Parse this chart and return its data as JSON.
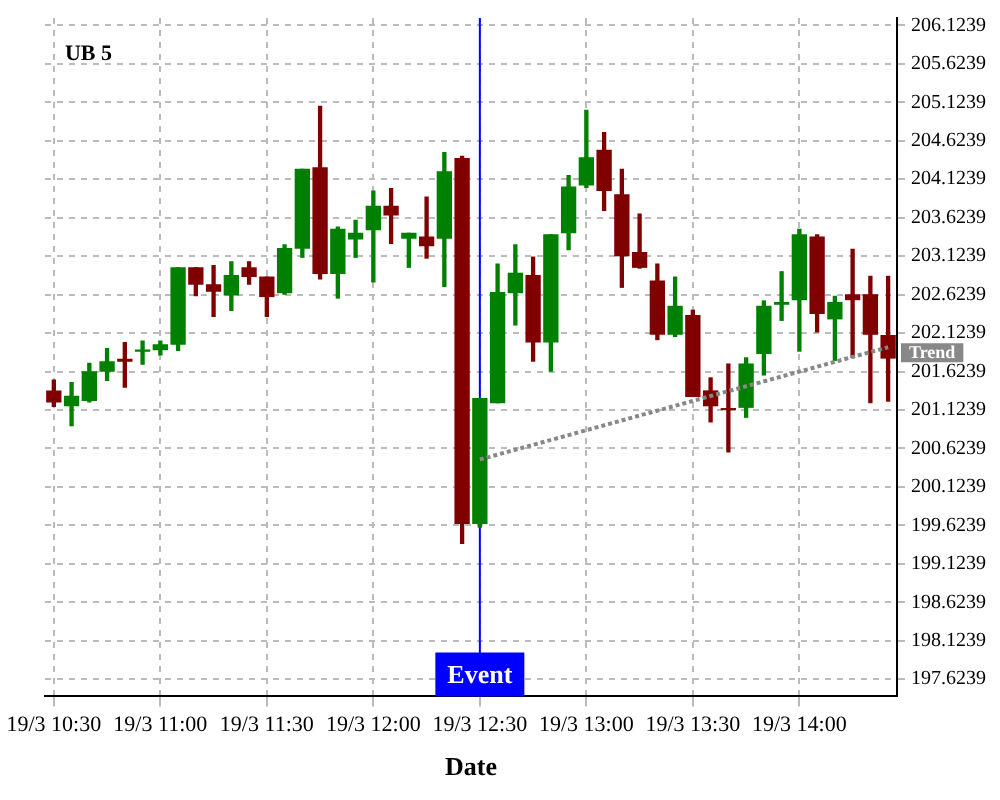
{
  "chart_data": {
    "type": "candlestick",
    "title": "UB 5",
    "xlabel": "Date",
    "categories": [
      "19/3 10:30",
      null,
      null,
      null,
      null,
      null,
      "19/3 11:00",
      null,
      null,
      null,
      null,
      null,
      "19/3 11:30",
      null,
      null,
      null,
      null,
      null,
      "19/3 12:00",
      null,
      null,
      null,
      null,
      null,
      "19/3 12:30",
      null,
      null,
      null,
      null,
      null,
      "19/3 13:00",
      null,
      null,
      null,
      null,
      null,
      "19/3 13:30",
      null,
      null,
      null,
      null,
      null,
      "19/3 14:00",
      null,
      null,
      null,
      null,
      null
    ],
    "ohlc": [
      [
        201.37,
        201.51,
        201.17,
        201.23
      ],
      [
        201.18,
        201.48,
        200.92,
        201.3
      ],
      [
        201.25,
        201.73,
        201.23,
        201.62
      ],
      [
        201.63,
        201.92,
        201.51,
        201.75
      ],
      [
        201.78,
        202.0,
        201.42,
        201.76
      ],
      [
        201.89,
        202.02,
        201.72,
        201.9
      ],
      [
        201.91,
        202.02,
        201.84,
        201.97
      ],
      [
        201.98,
        202.97,
        201.9,
        202.97
      ],
      [
        202.97,
        202.97,
        202.61,
        202.76
      ],
      [
        202.75,
        203.0,
        202.34,
        202.67
      ],
      [
        202.62,
        203.05,
        202.42,
        202.87
      ],
      [
        202.97,
        203.05,
        202.76,
        202.86
      ],
      [
        202.85,
        202.85,
        202.34,
        202.6
      ],
      [
        202.65,
        203.27,
        202.63,
        203.22
      ],
      [
        203.23,
        204.25,
        203.11,
        204.25
      ],
      [
        204.27,
        205.07,
        202.83,
        202.9
      ],
      [
        202.9,
        203.5,
        202.58,
        203.47
      ],
      [
        203.35,
        203.59,
        203.11,
        203.42
      ],
      [
        203.47,
        203.97,
        202.79,
        203.77
      ],
      [
        203.77,
        204.0,
        203.29,
        203.66
      ],
      [
        203.36,
        203.42,
        202.98,
        203.42
      ],
      [
        203.37,
        203.89,
        203.1,
        203.26
      ],
      [
        203.36,
        204.47,
        202.73,
        204.22
      ],
      [
        204.39,
        204.42,
        199.39,
        199.65
      ],
      [
        199.65,
        201.27,
        199.6,
        201.27
      ],
      [
        201.22,
        203.02,
        201.22,
        202.65
      ],
      [
        202.65,
        203.27,
        202.23,
        202.9
      ],
      [
        202.87,
        203.11,
        201.76,
        202.01
      ],
      [
        202.01,
        203.4,
        201.63,
        203.4
      ],
      [
        203.43,
        204.17,
        203.21,
        204.02
      ],
      [
        204.05,
        205.02,
        204.02,
        204.4
      ],
      [
        204.5,
        204.73,
        203.72,
        203.98
      ],
      [
        203.92,
        204.25,
        202.72,
        203.13
      ],
      [
        203.17,
        203.67,
        202.97,
        202.98
      ],
      [
        202.8,
        203.02,
        202.04,
        202.11
      ],
      [
        202.11,
        202.85,
        202.08,
        202.47
      ],
      [
        202.35,
        202.42,
        201.3,
        201.3
      ],
      [
        201.37,
        201.54,
        200.97,
        201.18
      ],
      [
        201.14,
        201.72,
        200.58,
        201.13
      ],
      [
        201.16,
        201.8,
        201.03,
        201.72
      ],
      [
        201.86,
        202.54,
        201.58,
        202.47
      ],
      [
        202.5,
        202.92,
        202.29,
        202.52
      ],
      [
        202.56,
        203.47,
        201.89,
        203.4
      ],
      [
        203.37,
        203.4,
        202.14,
        202.38
      ],
      [
        202.31,
        202.6,
        201.77,
        202.52
      ],
      [
        202.62,
        203.21,
        201.81,
        202.56
      ],
      [
        202.62,
        202.86,
        201.22,
        202.11
      ],
      [
        202.09,
        202.86,
        201.24,
        201.8
      ]
    ],
    "colors": [
      "#800000",
      "#008000",
      "#008000",
      "#008000",
      "#800000",
      "#008000",
      "#008000",
      "#008000",
      "#800000",
      "#800000",
      "#008000",
      "#800000",
      "#800000",
      "#008000",
      "#008000",
      "#800000",
      "#008000",
      "#008000",
      "#008000",
      "#800000",
      "#008000",
      "#800000",
      "#008000",
      "#800000",
      "#008000",
      "#008000",
      "#008000",
      "#800000",
      "#008000",
      "#008000",
      "#008000",
      "#800000",
      "#800000",
      "#800000",
      "#800000",
      "#008000",
      "#800000",
      "#800000",
      "#800000",
      "#008000",
      "#008000",
      "#008000",
      "#008000",
      "#800000",
      "#008000",
      "#800000",
      "#800000",
      "#800000"
    ],
    "series": [
      {
        "name": "Trend",
        "type": "line",
        "color": "#888888",
        "line_style": "dotted",
        "values": [
          null,
          null,
          null,
          null,
          null,
          null,
          null,
          null,
          null,
          null,
          null,
          null,
          null,
          null,
          null,
          null,
          null,
          null,
          null,
          null,
          null,
          null,
          null,
          null,
          200.48,
          null,
          null,
          null,
          null,
          null,
          null,
          null,
          null,
          null,
          null,
          null,
          null,
          null,
          null,
          null,
          null,
          null,
          null,
          null,
          null,
          null,
          null,
          201.94
        ]
      }
    ],
    "ref_lines": [
      {
        "axis": "x",
        "value": "19/3 12:30",
        "label": "Event",
        "color": "#0000ff"
      }
    ],
    "ylim": [
      197.4,
      206.22
    ],
    "yticks": [
      197.6239,
      198.1239,
      198.6239,
      199.1239,
      199.6239,
      200.1239,
      200.6239,
      201.1239,
      201.6239,
      202.1239,
      202.6239,
      203.1239,
      203.6239,
      204.1239,
      204.6239,
      205.1239,
      205.6239,
      206.1239
    ],
    "grid": true,
    "legend": false
  }
}
